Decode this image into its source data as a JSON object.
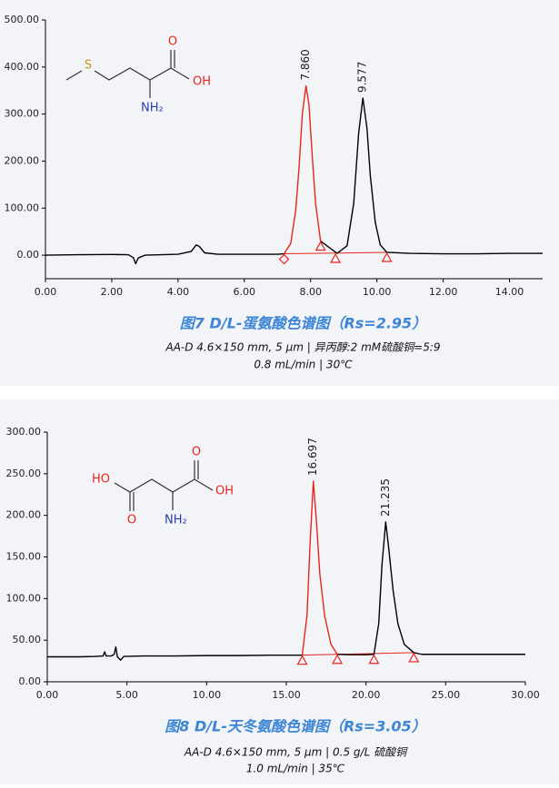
{
  "chart_data": [
    {
      "type": "line",
      "title": "图7 D/L-蛋氨酸色谱图（Rs=2.95）",
      "subtitle": [
        "AA-D 4.6×150 mm, 5 μm  |  异丙醇:2 mM硫酸铜=5:9",
        "0.8 mL/min  |  30℃"
      ],
      "structure_labels": [
        "S",
        "O",
        "OH",
        "NH₂"
      ],
      "xlim": [
        0,
        15
      ],
      "ylim": [
        -50,
        500
      ],
      "xticks": [
        {
          "value": 0,
          "label": "0.00"
        },
        {
          "value": 2,
          "label": "2.00"
        },
        {
          "value": 4,
          "label": "4.00"
        },
        {
          "value": 6,
          "label": "6.00"
        },
        {
          "value": 8,
          "label": "8.00"
        },
        {
          "value": 10,
          "label": "10.00"
        },
        {
          "value": 12,
          "label": "12.00"
        },
        {
          "value": 14,
          "label": "14.00"
        }
      ],
      "yticks": [
        {
          "value": 0,
          "label": "0.00"
        },
        {
          "value": 100,
          "label": "100.00"
        },
        {
          "value": 200,
          "label": "200.00"
        },
        {
          "value": 300,
          "label": "300.00"
        },
        {
          "value": 400,
          "label": "400.00"
        },
        {
          "value": 500,
          "label": "500.00"
        }
      ],
      "x": [
        0,
        1,
        2,
        2.5,
        2.65,
        2.72,
        2.8,
        3.0,
        3.5,
        4.0,
        4.4,
        4.55,
        4.65,
        4.8,
        5.2,
        6.0,
        7.0,
        7.2,
        7.4,
        7.55,
        7.65,
        7.75,
        7.86,
        7.95,
        8.05,
        8.15,
        8.3,
        8.8,
        9.1,
        9.3,
        9.45,
        9.577,
        9.7,
        9.8,
        9.95,
        10.1,
        10.3,
        11,
        12,
        13,
        14,
        15
      ],
      "series": [
        {
          "color": "#000000",
          "values": [
            0,
            1,
            1.5,
            1,
            -5,
            -18,
            -6,
            0,
            1,
            2,
            8,
            22,
            18,
            5,
            2,
            2,
            2,
            3,
            null,
            null,
            null,
            null,
            null,
            null,
            null,
            null,
            30,
            4,
            20,
            110,
            260,
            334,
            270,
            170,
            70,
            22,
            6,
            4,
            3,
            3,
            4,
            4
          ]
        },
        {
          "color": "#e8251c",
          "values": [
            null,
            null,
            null,
            null,
            null,
            null,
            null,
            null,
            null,
            null,
            null,
            null,
            null,
            null,
            null,
            null,
            null,
            3,
            25,
            95,
            185,
            300,
            360,
            320,
            210,
            110,
            30,
            null,
            null,
            null,
            null,
            null,
            null,
            null,
            null,
            null,
            null,
            null,
            null,
            null,
            null,
            null
          ]
        }
      ],
      "peak_marks": {
        "color": "#e8251c",
        "x": [
          7.2,
          8.3,
          8.75,
          10.3
        ],
        "shapes": [
          "diamond",
          "triangle",
          "triangle",
          "triangle"
        ]
      },
      "annotations": [
        {
          "x": 7.86,
          "y": 360,
          "text": "7.860"
        },
        {
          "x": 9.577,
          "y": 334,
          "text": "9.577"
        }
      ]
    },
    {
      "type": "line",
      "title": "图8 D/L-天冬氨酸色谱图（Rs=3.05）",
      "subtitle": [
        "AA-D 4.6×150 mm, 5 μm  |  0.5 g/L 硫酸铜",
        "1.0 mL/min  |  35℃"
      ],
      "structure_labels": [
        "HO",
        "O",
        "O",
        "OH",
        "NH₂"
      ],
      "xlim": [
        0,
        30
      ],
      "ylim": [
        0,
        300
      ],
      "xticks": [
        {
          "value": 0,
          "label": "0.00"
        },
        {
          "value": 5,
          "label": "5.00"
        },
        {
          "value": 10,
          "label": "10.00"
        },
        {
          "value": 15,
          "label": "15.00"
        },
        {
          "value": 20,
          "label": "20.00"
        },
        {
          "value": 25,
          "label": "25.00"
        },
        {
          "value": 30,
          "label": "30.00"
        }
      ],
      "yticks": [
        {
          "value": 0,
          "label": "0.00"
        },
        {
          "value": 50,
          "label": "50.00"
        },
        {
          "value": 100,
          "label": "100.00"
        },
        {
          "value": 150,
          "label": "150.00"
        },
        {
          "value": 200,
          "label": "200.00"
        },
        {
          "value": 250,
          "label": "250.00"
        },
        {
          "value": 300,
          "label": "300.00"
        }
      ],
      "x": [
        0,
        1,
        2,
        3,
        3.5,
        3.6,
        3.7,
        4.0,
        4.2,
        4.3,
        4.4,
        4.6,
        4.8,
        6,
        8,
        10,
        12,
        14,
        15,
        16.0,
        16.3,
        16.5,
        16.697,
        16.9,
        17.1,
        17.4,
        17.8,
        18.2,
        19,
        20,
        20.5,
        20.8,
        21.0,
        21.235,
        21.4,
        21.7,
        22.0,
        22.4,
        23.0,
        23.5,
        25,
        27,
        30
      ],
      "series": [
        {
          "color": "#000000",
          "values": [
            30,
            30,
            30,
            30.5,
            31,
            36,
            31,
            31,
            33,
            42,
            30,
            26,
            30.5,
            31,
            31,
            31.5,
            31.5,
            32,
            32,
            32,
            null,
            null,
            null,
            null,
            null,
            null,
            null,
            33,
            32.5,
            32.5,
            33,
            70,
            140,
            192,
            165,
            110,
            70,
            45,
            35,
            33,
            33,
            33,
            33
          ]
        },
        {
          "color": "#e8251c",
          "values": [
            null,
            null,
            null,
            null,
            null,
            null,
            null,
            null,
            null,
            null,
            null,
            null,
            null,
            null,
            null,
            null,
            null,
            null,
            null,
            32,
            80,
            170,
            241,
            190,
            130,
            80,
            45,
            33,
            null,
            null,
            null,
            null,
            null,
            null,
            null,
            null,
            null,
            null,
            null,
            null,
            null,
            null,
            null
          ]
        }
      ],
      "peak_marks": {
        "color": "#e8251c",
        "x": [
          16.0,
          18.2,
          20.5,
          23.0
        ],
        "shapes": [
          "triangle",
          "triangle",
          "triangle",
          "triangle"
        ]
      },
      "annotations": [
        {
          "x": 16.697,
          "y": 241,
          "text": "16.697"
        },
        {
          "x": 21.235,
          "y": 192,
          "text": "21.235"
        }
      ]
    }
  ]
}
